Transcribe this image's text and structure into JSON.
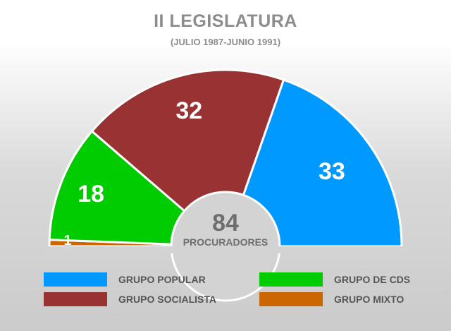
{
  "chart_data": {
    "type": "pie",
    "title": "II LEGISLATURA",
    "subtitle": "(JULIO 1987-JUNIO 1991)",
    "categories": [
      "GRUPO MIXTO",
      "GRUPO DE CDS",
      "GRUPO SOCIALISTA",
      "GRUPO POPULAR"
    ],
    "values": [
      1,
      18,
      32,
      33
    ],
    "colors": [
      "#cc6600",
      "#00cc00",
      "#993333",
      "#0099ff"
    ],
    "total": "84",
    "total_label": "PROCURADORES",
    "legend": [
      {
        "label": "GRUPO POPULAR",
        "color": "#0099ff"
      },
      {
        "label": "GRUPO DE CDS",
        "color": "#00cc00"
      },
      {
        "label": "GRUPO SOCIALISTA",
        "color": "#993333"
      },
      {
        "label": "GRUPO MIXTO",
        "color": "#cc6600"
      }
    ]
  }
}
